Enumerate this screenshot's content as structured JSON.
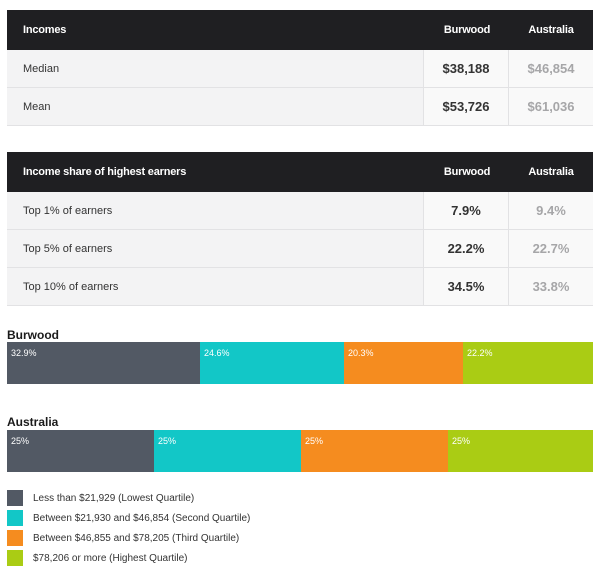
{
  "incomes_table": {
    "header": {
      "label": "Incomes",
      "col_a": "Burwood",
      "col_b": "Australia"
    },
    "rows": [
      {
        "label": "Median",
        "a": "$38,188",
        "b": "$46,854"
      },
      {
        "label": "Mean",
        "a": "$53,726",
        "b": "$61,036"
      }
    ]
  },
  "share_table": {
    "header": {
      "label": "Income share of highest earners",
      "col_a": "Burwood",
      "col_b": "Australia"
    },
    "rows": [
      {
        "label": "Top 1% of earners",
        "a": "7.9%",
        "b": "9.4%"
      },
      {
        "label": "Top 5% of earners",
        "a": "22.2%",
        "b": "22.7%"
      },
      {
        "label": "Top 10% of earners",
        "a": "34.5%",
        "b": "33.8%"
      }
    ]
  },
  "colors": {
    "q1": "#525964",
    "q2": "#12c7c7",
    "q3": "#f58c1f",
    "q4": "#aacc14"
  },
  "chart_data": {
    "type": "bar",
    "orientation": "horizontal-stacked",
    "categories": [
      "Burwood",
      "Australia"
    ],
    "series": [
      {
        "name": "Less than $21,929 (Lowest Quartile)",
        "values": [
          32.9,
          25
        ],
        "labels": [
          "32.9%",
          "25%"
        ]
      },
      {
        "name": "Between $21,930 and $46,854 (Second Quartile)",
        "values": [
          24.6,
          25
        ],
        "labels": [
          "24.6%",
          "25%"
        ]
      },
      {
        "name": "Between $46,855 and $78,205 (Third Quartile)",
        "values": [
          20.3,
          25
        ],
        "labels": [
          "20.3%",
          "25%"
        ]
      },
      {
        "name": "$78,206 or more (Highest Quartile)",
        "values": [
          22.2,
          25
        ],
        "labels": [
          "22.2%",
          "25%"
        ]
      }
    ],
    "legend": "bottom-left"
  }
}
